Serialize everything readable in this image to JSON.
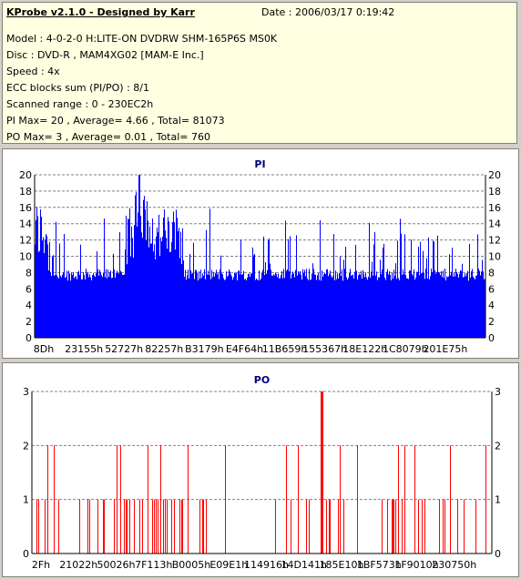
{
  "info": {
    "title": "KProbe v2.1.0 - Designed by Karr",
    "date": "Date : 2006/03/17 0:19:42",
    "lines": [
      "Model : 4-0-2-0 H:LITE-ON DVDRW SHM-165P6S MS0K",
      "Disc : DVD-R , MAM4XG02 [MAM-E Inc.]",
      "Speed : 4x",
      "ECC blocks sum (PI/PO) : 8/1",
      "Scanned range : 0 - 230EC2h",
      "PI Max= 20 , Average= 4.66 , Total= 81073",
      "PO Max= 3 , Average= 0.01 , Total= 760"
    ]
  },
  "chart_data": [
    {
      "type": "bar",
      "title": "PI",
      "ylim": [
        0,
        20
      ],
      "yticks": [
        0,
        2,
        4,
        6,
        8,
        10,
        12,
        14,
        16,
        18,
        20
      ],
      "xtick_labels": [
        "8Dh",
        "23155h",
        "52727h",
        "82257h",
        "B3179h",
        "E4F64h",
        "11B659h",
        "155367h",
        "18E122h",
        "1C8079h",
        "201E75h"
      ],
      "color": "#0000ff",
      "baseline_approx": 8,
      "peak_region": "82257h-B3179h",
      "max": 20
    },
    {
      "type": "bar",
      "title": "PO",
      "ylim": [
        0,
        3
      ],
      "yticks": [
        0,
        1,
        2,
        3
      ],
      "xtick_labels": [
        "2Fh",
        "21022h",
        "50026h",
        "7F113h",
        "B0005h",
        "E09E1h",
        "114916h",
        "14D141h",
        "185E10h",
        "1BF573h",
        "1F9010h",
        "230750h"
      ],
      "color": "#ff0000",
      "max": 3,
      "max_position_fraction": 0.63
    }
  ]
}
